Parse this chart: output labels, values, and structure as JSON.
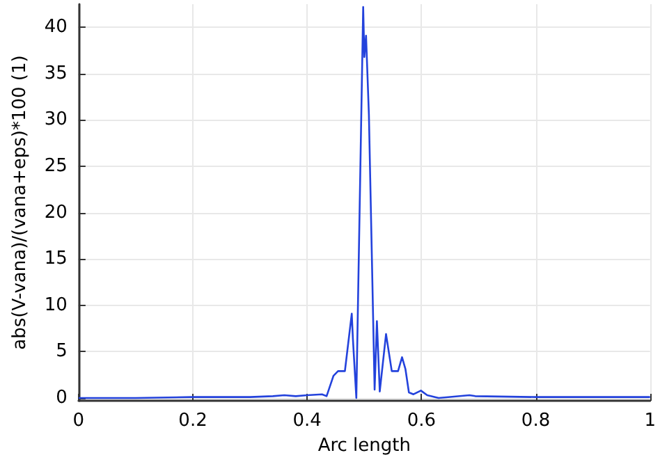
{
  "chart_data": {
    "type": "line",
    "xlabel": "Arc length",
    "ylabel": "abs(V-vana)/(vana+eps)*100 (1)",
    "x": [
      0,
      0.1,
      0.2,
      0.3,
      0.34,
      0.36,
      0.38,
      0.4,
      0.426,
      0.434,
      0.446,
      0.454,
      0.466,
      0.478,
      0.48,
      0.486,
      0.498,
      0.5,
      0.503,
      0.508,
      0.518,
      0.522,
      0.527,
      0.538,
      0.548,
      0.559,
      0.566,
      0.572,
      0.578,
      0.586,
      0.599,
      0.61,
      0.63,
      0.684,
      0.694,
      0.8,
      0.9,
      1
    ],
    "series": [
      {
        "color": "#2342dc",
        "values": [
          0,
          0,
          0.1,
          0.1,
          0.2,
          0.3,
          0.2,
          0.3,
          0.4,
          0.2,
          2.4,
          2.9,
          2.9,
          9.1,
          6.4,
          0,
          42.2,
          36.8,
          39.1,
          30.6,
          0.9,
          8.3,
          0.7,
          6.9,
          2.9,
          2.9,
          4.4,
          3.1,
          0.6,
          0.4,
          0.8,
          0.3,
          0,
          0.3,
          0.2,
          0.1,
          0.1,
          0.1
        ]
      }
    ],
    "xlim": [
      0,
      1
    ],
    "xticks": [
      0,
      0.2,
      0.4,
      0.6,
      0.8,
      1
    ],
    "ylim": [
      -0.3,
      42.5
    ],
    "yticks": [
      0,
      5,
      10,
      15,
      20,
      25,
      30,
      35,
      40
    ],
    "grid": true,
    "marker": "none",
    "line_style": "solid"
  }
}
